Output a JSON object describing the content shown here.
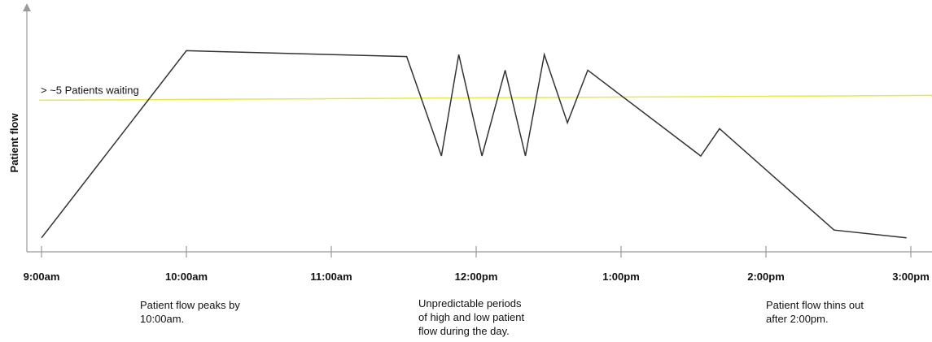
{
  "chart_data": {
    "type": "line",
    "title": "",
    "xlabel": "",
    "ylabel": "Patient flow",
    "x_ticks": [
      "9:00am",
      "10:00am",
      "11:00am",
      "12:00pm",
      "1:00pm",
      "2:00pm",
      "3:00pm"
    ],
    "xlim": [
      9.0,
      15.0
    ],
    "ylim": [
      0,
      10
    ],
    "grid": false,
    "series": [
      {
        "color": "#333333",
        "x": [
          9.0,
          10.0,
          11.52,
          11.76,
          11.88,
          12.04,
          12.2,
          12.34,
          12.47,
          12.63,
          12.77,
          13.55,
          13.68,
          14.47,
          14.97
        ],
        "y": [
          0.3,
          9.9,
          9.6,
          4.5,
          9.7,
          4.5,
          8.9,
          4.5,
          9.7,
          6.2,
          8.9,
          4.5,
          5.9,
          0.7,
          0.3
        ]
      }
    ],
    "threshold": {
      "label": "> ~5 Patients waiting",
      "y": 7.4,
      "color": "#e8e84a"
    },
    "annotations": [
      {
        "text": "Patient flow peaks by\n10:00am.",
        "x": 9.68
      },
      {
        "text": "Unpredictable periods\nof high and low patient\nflow during the day.",
        "x": 11.6
      },
      {
        "text": "Patient flow thins out\nafter 2:00pm.",
        "x": 14.0
      }
    ]
  }
}
